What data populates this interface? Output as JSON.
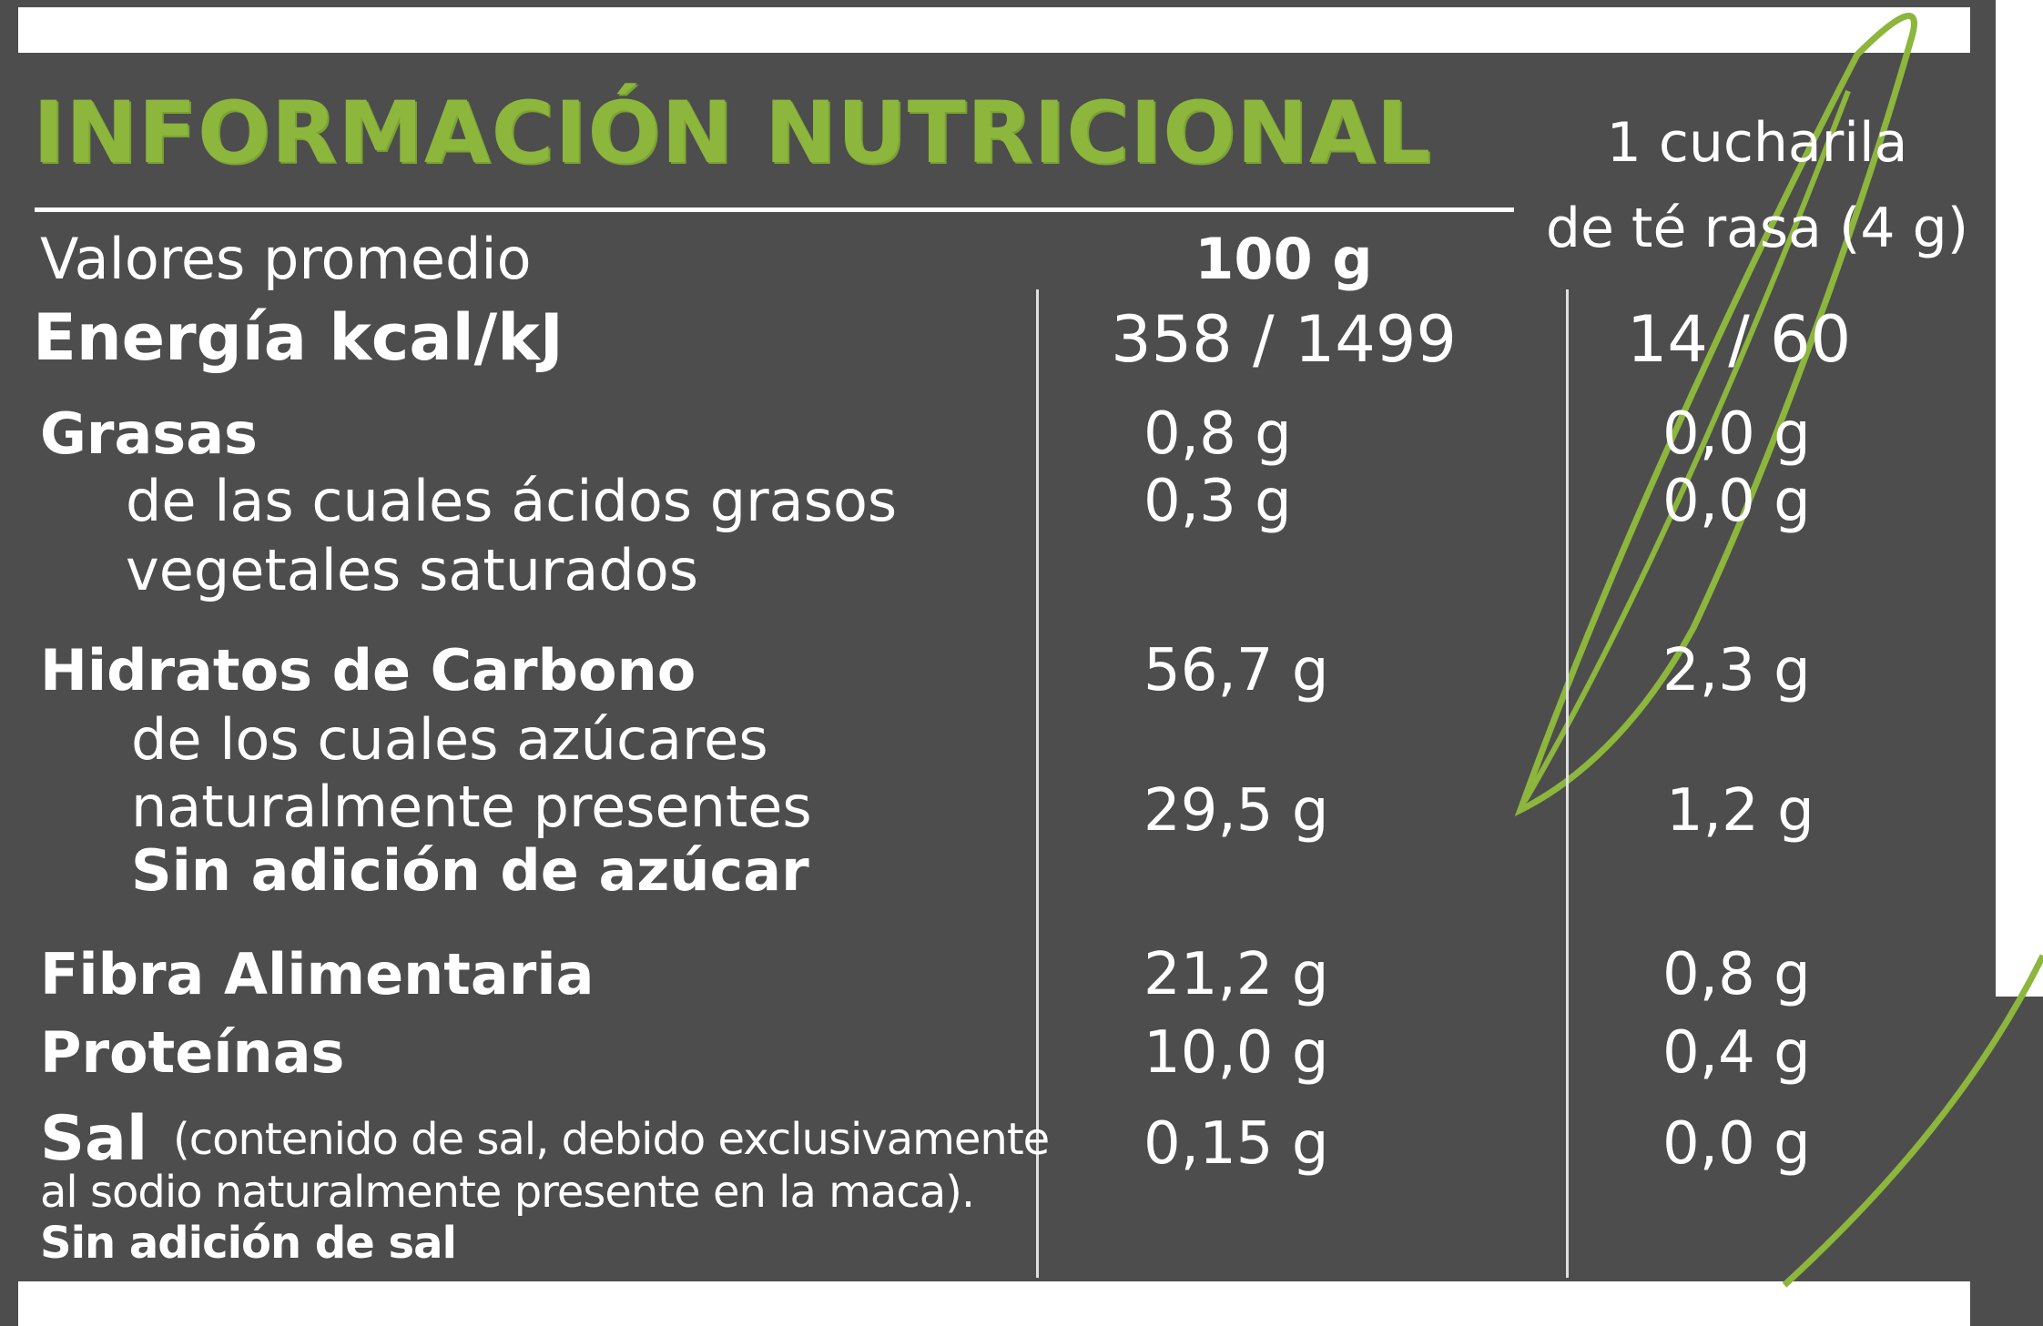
{
  "title": "INFORMACIÓN NUTRICIONAL",
  "header": {
    "row_label": "Valores promedio",
    "col_100g": "100 g",
    "col_portion_line1": "1 cucharila",
    "col_portion_line2": "de té rasa (4 g)"
  },
  "rows": [
    {
      "label": "Energía  kcal/kJ",
      "v100": "358 / 1499",
      "vportion": "14 / 60"
    },
    {
      "label": "Grasas",
      "v100": "0,8 g",
      "vportion": "0,0 g"
    },
    {
      "label": "de las cuales ácidos grasos",
      "label2": "vegetales saturados",
      "v100": "0,3 g",
      "vportion": "0,0 g"
    },
    {
      "label": "Hidratos de Carbono",
      "v100": "56,7 g",
      "vportion": "2,3 g"
    },
    {
      "label": "de los cuales azúcares",
      "label2": "naturalmente presentes",
      "label3": "Sin adición de azúcar",
      "v100": "29,5 g",
      "vportion": "1,2 g"
    },
    {
      "label": "Fibra Alimentaria",
      "v100": "21,2 g",
      "vportion": "0,8 g"
    },
    {
      "label": "Proteínas",
      "v100": "10,0 g",
      "vportion": "0,4 g"
    },
    {
      "label": "Sal",
      "note_line1": "(contenido de sal, debido exclusivamente",
      "note_line2": "al sodio naturalmente presente en la maca).",
      "note_line3": "Sin adición de sal",
      "v100": "0,15 g",
      "vportion": "0,0 g"
    }
  ],
  "colors": {
    "background": "#4d4d4d",
    "accent_green": "#8cb63c",
    "text": "#ffffff"
  },
  "decoration": {
    "leaf": "leaf-outline-icon"
  }
}
